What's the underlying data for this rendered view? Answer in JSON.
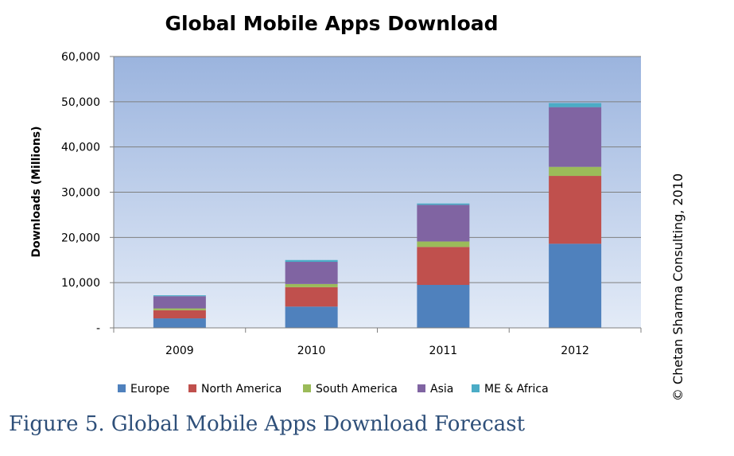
{
  "caption": "Figure 5. Global Mobile Apps Download Forecast",
  "copyright": "© Chetan Sharma Consulting, 2010",
  "chart_data": {
    "type": "bar",
    "stacked": true,
    "title": "Global Mobile Apps Download",
    "xlabel": "",
    "ylabel": "Downloads (Millions)",
    "categories": [
      "2009",
      "2010",
      "2011",
      "2012"
    ],
    "ylim": [
      0,
      60000
    ],
    "yticks": [
      0,
      10000,
      20000,
      30000,
      40000,
      50000,
      60000
    ],
    "ytick_labels": [
      "-",
      "10,000",
      "20,000",
      "30,000",
      "40,000",
      "50,000",
      "60,000"
    ],
    "grid": true,
    "legend_position": "bottom",
    "series": [
      {
        "name": "Europe",
        "color": "#4f81bd",
        "values": [
          2100,
          4700,
          9500,
          18600
        ]
      },
      {
        "name": "North America",
        "color": "#c0504d",
        "values": [
          1800,
          4300,
          8400,
          15000
        ]
      },
      {
        "name": "South America",
        "color": "#9bbb59",
        "values": [
          400,
          700,
          1200,
          2000
        ]
      },
      {
        "name": "Asia",
        "color": "#8064a2",
        "values": [
          2700,
          4900,
          8100,
          13200
        ]
      },
      {
        "name": "ME & Africa",
        "color": "#4bacc6",
        "values": [
          200,
          400,
          300,
          900
        ]
      }
    ]
  }
}
